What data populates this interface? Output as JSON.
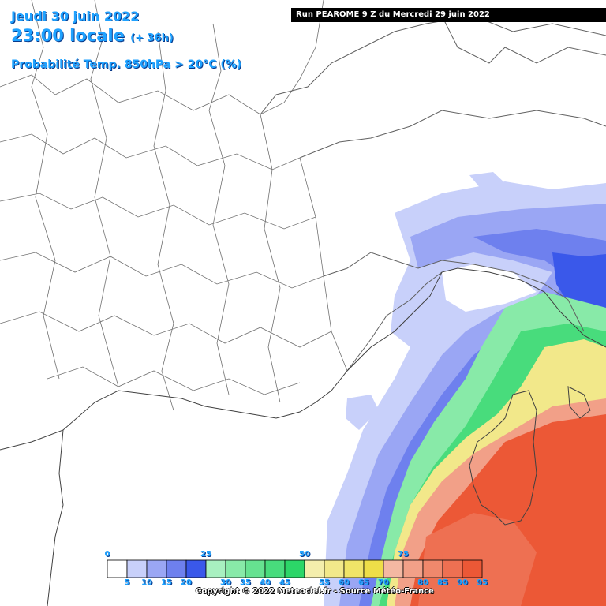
{
  "header": {
    "date": "Jeudi 30 juin 2022",
    "time": "23:00 locale",
    "lead": "(+ 36h)",
    "parameter": "Probabilité Temp. 850hPa > 20°C (%)"
  },
  "run_banner": "Run PEAROME 9 Z du Mercredi 29 juin 2022",
  "legend": {
    "major_labels": [
      "0",
      "25",
      "50",
      "75"
    ],
    "minor_labels": [
      "5",
      "10",
      "15",
      "20",
      "30",
      "35",
      "40",
      "45",
      "55",
      "60",
      "65",
      "70",
      "80",
      "85",
      "90",
      "95"
    ],
    "colors": [
      "#ffffff",
      "#c8d0fa",
      "#9aa6f4",
      "#6e80ee",
      "#3a58ea",
      "#a8f0c0",
      "#88eaa8",
      "#66e290",
      "#48dc7c",
      "#2cd668",
      "#f4eeac",
      "#f2e88a",
      "#f0e468",
      "#eede48",
      "#f4b8a2",
      "#f2a088",
      "#f0886c",
      "#ee7052",
      "#ec5836"
    ]
  },
  "copyright": "Copyright © 2022 Meteociel.fr - Source Météo-France",
  "map": {
    "background": "#ffffff",
    "border_color": "#707070",
    "coast_color": "#404040"
  }
}
